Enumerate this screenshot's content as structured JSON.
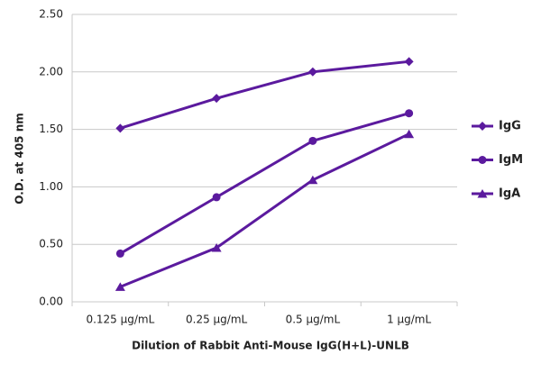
{
  "chart_data": {
    "type": "line",
    "x_label": "Dilution of Rabbit Anti-Mouse IgG(H+L)-UNLB",
    "y_label": "O.D. at 405 nm",
    "categories": [
      "0.125 µg/mL",
      "0.25 µg/mL",
      "0.5 µg/mL",
      "1 µg/mL"
    ],
    "series": [
      {
        "name": "IgG",
        "color": "#5b1a9e",
        "marker": "diamond",
        "values": [
          1.51,
          1.77,
          2.0,
          2.09
        ]
      },
      {
        "name": "IgM",
        "color": "#5b1a9e",
        "marker": "circle",
        "values": [
          0.42,
          0.91,
          1.4,
          1.64
        ]
      },
      {
        "name": "IgA",
        "color": "#5b1a9e",
        "marker": "triangle",
        "values": [
          0.13,
          0.47,
          1.06,
          1.46
        ]
      }
    ],
    "ylim": [
      0,
      2.5
    ],
    "yticks": [
      {
        "value": 0,
        "label": "0.00"
      },
      {
        "value": 0.5,
        "label": "0.50"
      },
      {
        "value": 1,
        "label": "1.00"
      },
      {
        "value": 1.5,
        "label": "1.50"
      },
      {
        "value": 2,
        "label": "2.00"
      },
      {
        "value": 2.5,
        "label": "2.50"
      }
    ],
    "grid": true,
    "legend": "right"
  }
}
